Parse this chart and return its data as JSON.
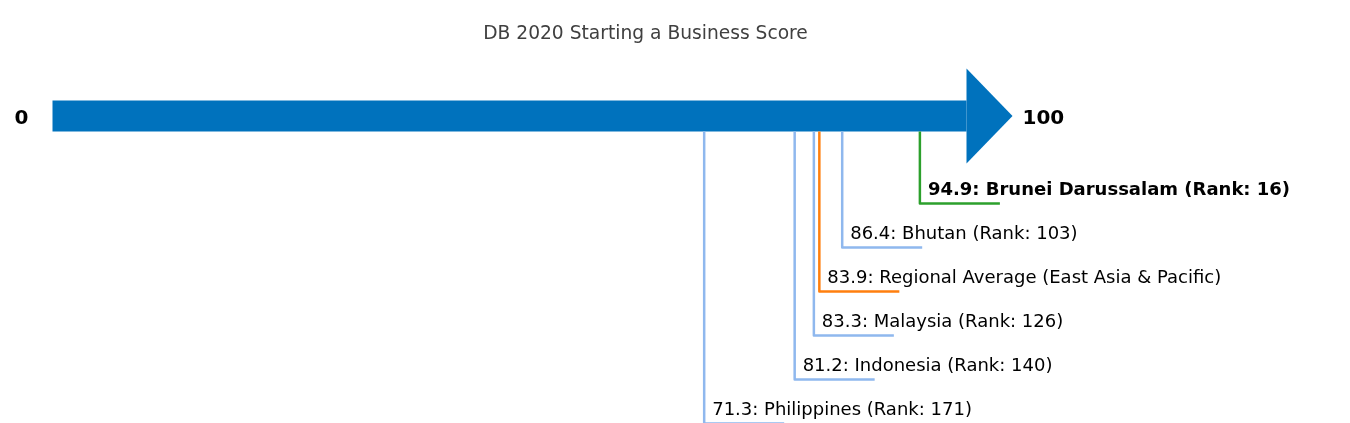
{
  "chart_data": {
    "type": "other",
    "title": "DB 2020 Starting a Business Score",
    "categories": [
      ": Brunei Darussalam (Rank: 16)",
      ": Bhutan (Rank: 103)",
      ": Regional Average (East Asia & Pacific)",
      ": Malaysia (Rank: 126)",
      ": Indonesia (Rank: 140)",
      ": Philippines (Rank: 171)"
    ],
    "values": [
      94.9,
      86.4,
      83.9,
      83.3,
      81.2,
      71.3
    ],
    "data_labels": true,
    "colors": [
      "#2ca02c",
      "#8fb8ee",
      "#ff7f0e",
      "#8fb8ee",
      "#8fb8ee",
      "#8fb8ee"
    ],
    "color": "#0072bd",
    "annotations": [
      "0",
      "100"
    ]
  }
}
